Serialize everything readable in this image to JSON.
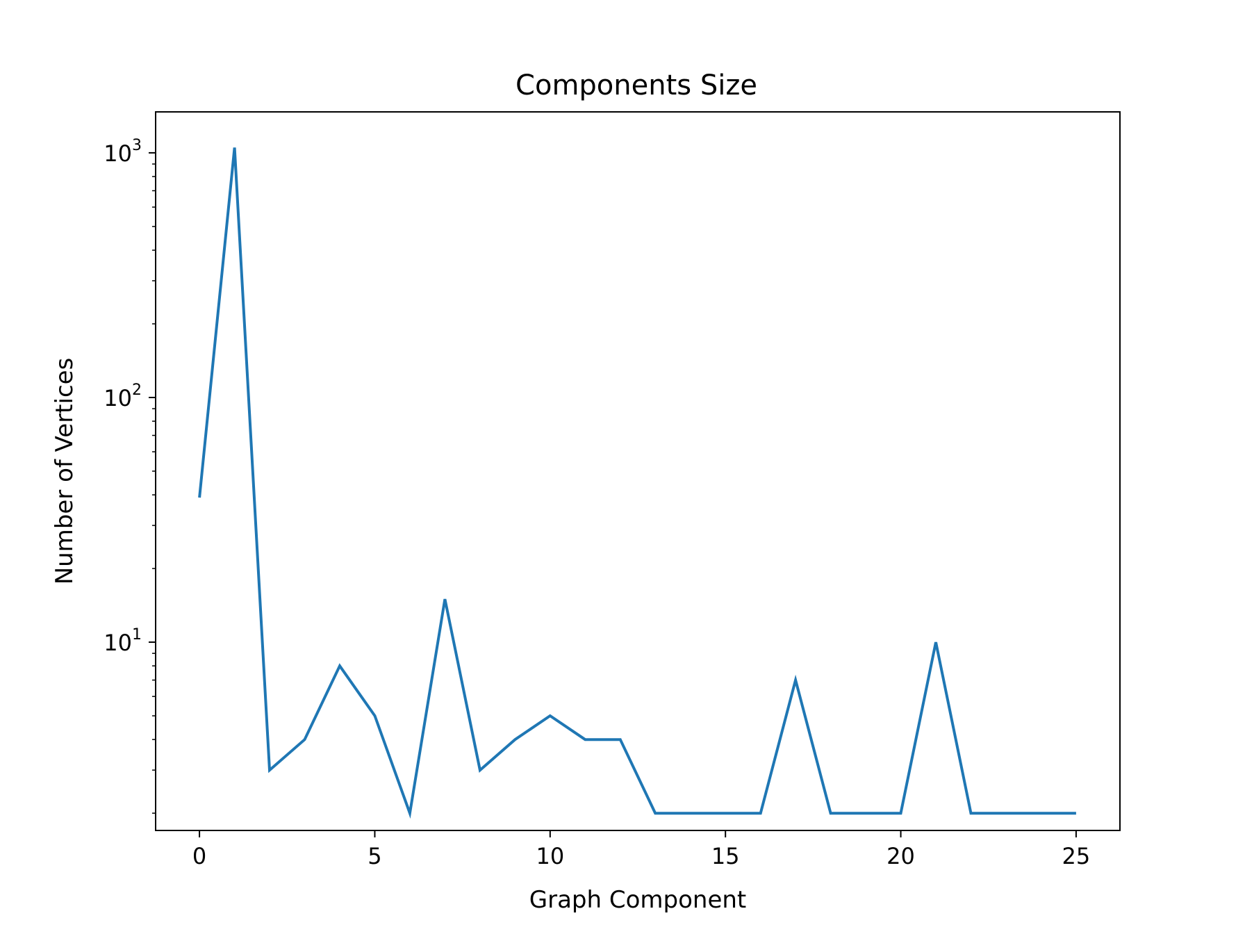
{
  "chart_data": {
    "type": "line",
    "title": "Components Size",
    "xlabel": "Graph Component",
    "ylabel": "Number of Vertices",
    "yscale": "log",
    "x": [
      0,
      1,
      2,
      3,
      4,
      5,
      6,
      7,
      8,
      9,
      10,
      11,
      12,
      13,
      14,
      15,
      16,
      17,
      18,
      19,
      20,
      21,
      22,
      23,
      24,
      25
    ],
    "series": [
      {
        "color": "#1f77b4",
        "values": [
          39,
          1050,
          3,
          4,
          8,
          5,
          2,
          15,
          3,
          4,
          5,
          4,
          4,
          2,
          2,
          2,
          2,
          7,
          2,
          2,
          2,
          10,
          2,
          2,
          2,
          2
        ]
      }
    ],
    "xlim": [
      -1.25,
      26.25
    ],
    "ylim": [
      1.7,
      1470
    ],
    "xticks": [
      {
        "value": 0,
        "label": "0"
      },
      {
        "value": 5,
        "label": "5"
      },
      {
        "value": 10,
        "label": "10"
      },
      {
        "value": 15,
        "label": "15"
      },
      {
        "value": 20,
        "label": "20"
      },
      {
        "value": 25,
        "label": "25"
      }
    ],
    "yticks": [
      {
        "value": 10,
        "base": "10",
        "exp": "1"
      },
      {
        "value": 100,
        "base": "10",
        "exp": "2"
      },
      {
        "value": 1000,
        "base": "10",
        "exp": "3"
      }
    ],
    "grid": false,
    "legend": "none"
  }
}
